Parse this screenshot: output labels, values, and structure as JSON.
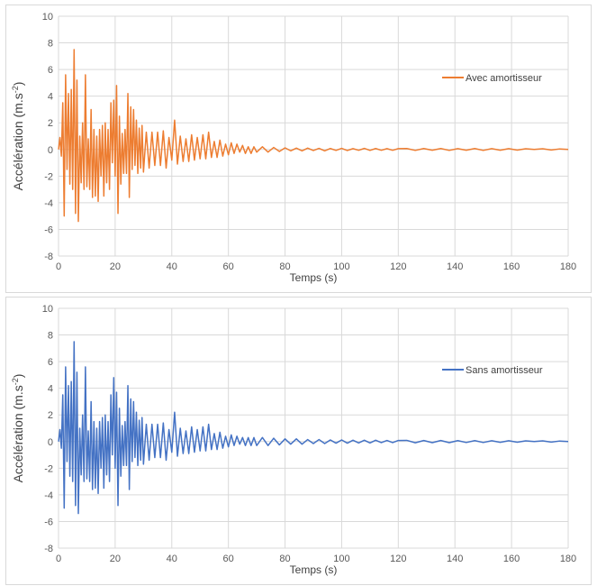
{
  "chart_data": [
    {
      "type": "line",
      "xlabel": "Temps (s)",
      "ylabel": "Accélération (m.s",
      "ylabel_sup": "-2",
      "ylabel_close": ")",
      "xlim": [
        0,
        180
      ],
      "ylim": [
        -8,
        10
      ],
      "xticks": [
        0,
        20,
        40,
        60,
        80,
        100,
        120,
        140,
        160,
        180
      ],
      "yticks": [
        -8,
        -6,
        -4,
        -2,
        0,
        2,
        4,
        6,
        8,
        10
      ],
      "grid": true,
      "legend_position": "right",
      "series": [
        {
          "name": "Avec amortisseur",
          "color": "#ed7d31",
          "x": [
            0,
            0.5,
            1,
            1.5,
            2,
            2.5,
            3,
            3.5,
            4,
            4.5,
            5,
            5.5,
            6,
            6.5,
            7,
            7.5,
            8,
            8.5,
            9,
            9.5,
            10,
            10.5,
            11,
            11.5,
            12,
            12.5,
            13,
            13.5,
            14,
            14.5,
            15,
            15.5,
            16,
            16.5,
            17,
            17.5,
            18,
            18.5,
            19,
            19.5,
            20,
            20.5,
            21,
            21.5,
            22,
            22.5,
            23,
            23.5,
            24,
            24.5,
            25,
            25.5,
            26,
            26.5,
            27,
            27.5,
            28,
            28.5,
            29,
            29.5,
            30,
            31,
            32,
            33,
            34,
            35,
            36,
            37,
            38,
            39,
            40,
            41,
            42,
            43,
            44,
            45,
            46,
            47,
            48,
            49,
            50,
            51,
            52,
            53,
            54,
            55,
            56,
            57,
            58,
            59,
            60,
            61,
            62,
            63,
            64,
            65,
            66,
            67,
            68,
            69,
            70,
            72,
            74,
            76,
            78,
            80,
            82,
            84,
            86,
            88,
            90,
            92,
            94,
            96,
            98,
            100,
            102,
            104,
            106,
            108,
            110,
            112,
            114,
            116,
            118,
            120,
            123,
            126,
            129,
            132,
            135,
            138,
            141,
            144,
            147,
            150,
            153,
            156,
            159,
            162,
            165,
            168,
            171,
            174,
            177,
            180
          ],
          "y": [
            0,
            0.9,
            -0.5,
            3.5,
            -5,
            5.6,
            -1.5,
            4.2,
            -2.6,
            4.5,
            -3,
            7.5,
            -4.8,
            5.2,
            -5.4,
            1,
            -2.5,
            2,
            -3,
            5.6,
            -2.8,
            0.8,
            -3,
            3,
            -3.6,
            1.5,
            -3.5,
            1,
            -3.9,
            1.5,
            -2,
            1.8,
            -3.5,
            2,
            -2.5,
            1.5,
            -3,
            3.5,
            -1,
            3.7,
            -2,
            4.8,
            -4.8,
            2.5,
            -2.6,
            1.2,
            -1.8,
            1.5,
            -1.8,
            4.2,
            -3.6,
            3.2,
            -1.5,
            3,
            -1.2,
            2.2,
            -1.8,
            1.6,
            -1.4,
            1.8,
            -1.7,
            1.3,
            -1.4,
            1.3,
            -1.2,
            1.3,
            -1.2,
            1.4,
            -1.4,
            0.9,
            -0.8,
            2.2,
            -1.1,
            1,
            -0.9,
            0.8,
            -0.9,
            1.1,
            -0.8,
            0.9,
            -0.7,
            1.1,
            -0.7,
            1.3,
            -0.6,
            0.6,
            -0.6,
            0.7,
            -0.5,
            0.4,
            -0.4,
            0.5,
            -0.3,
            0.4,
            -0.2,
            0.3,
            -0.3,
            0.2,
            -0.3,
            0.2,
            -0.2,
            0.2,
            -0.2,
            0.15,
            -0.15,
            0.12,
            -0.1,
            0.1,
            -0.1,
            0.1,
            -0.08,
            0.08,
            -0.1,
            0.07,
            -0.07,
            0.08,
            -0.08,
            0.06,
            -0.06,
            0.08,
            -0.07,
            0.07,
            -0.06,
            0.06,
            -0.06,
            0.06,
            0.07,
            -0.07,
            0.07,
            -0.06,
            0.07,
            -0.07,
            0.06,
            -0.06,
            0.07,
            -0.07,
            0.06,
            -0.06,
            0.06,
            -0.05,
            0.05,
            0,
            0.05,
            -0.04,
            0.04,
            0
          ]
        }
      ]
    },
    {
      "type": "line",
      "xlabel": "Temps (s)",
      "ylabel": "Accélération (m.s",
      "ylabel_sup": "-2",
      "ylabel_close": ")",
      "xlim": [
        0,
        180
      ],
      "ylim": [
        -8,
        10
      ],
      "xticks": [
        0,
        20,
        40,
        60,
        80,
        100,
        120,
        140,
        160,
        180
      ],
      "yticks": [
        -8,
        -6,
        -4,
        -2,
        0,
        2,
        4,
        6,
        8,
        10
      ],
      "grid": true,
      "legend_position": "right",
      "series": [
        {
          "name": "Sans amortisseur",
          "color": "#4472c4",
          "x": [
            0,
            0.5,
            1,
            1.5,
            2,
            2.5,
            3,
            3.5,
            4,
            4.5,
            5,
            5.5,
            6,
            6.5,
            7,
            7.5,
            8,
            8.5,
            9,
            9.5,
            10,
            10.5,
            11,
            11.5,
            12,
            12.5,
            13,
            13.5,
            14,
            14.5,
            15,
            15.5,
            16,
            16.5,
            17,
            17.5,
            18,
            18.5,
            19,
            19.5,
            20,
            20.5,
            21,
            21.5,
            22,
            22.5,
            23,
            23.5,
            24,
            24.5,
            25,
            25.5,
            26,
            26.5,
            27,
            27.5,
            28,
            28.5,
            29,
            29.5,
            30,
            31,
            32,
            33,
            34,
            35,
            36,
            37,
            38,
            39,
            40,
            41,
            42,
            43,
            44,
            45,
            46,
            47,
            48,
            49,
            50,
            51,
            52,
            53,
            54,
            55,
            56,
            57,
            58,
            59,
            60,
            61,
            62,
            63,
            64,
            65,
            66,
            67,
            68,
            69,
            70,
            72,
            74,
            76,
            78,
            80,
            82,
            84,
            86,
            88,
            90,
            92,
            94,
            96,
            98,
            100,
            102,
            104,
            106,
            108,
            110,
            112,
            114,
            116,
            118,
            120,
            123,
            126,
            129,
            132,
            135,
            138,
            141,
            144,
            147,
            150,
            153,
            156,
            159,
            162,
            165,
            168,
            171,
            174,
            177,
            180
          ],
          "y": [
            0,
            0.9,
            -0.5,
            3.5,
            -5,
            5.6,
            -1.5,
            4.2,
            -2.6,
            4.5,
            -3,
            7.5,
            -4.8,
            5.2,
            -5.4,
            1,
            -2.5,
            2,
            -3,
            5.6,
            -2.8,
            0.8,
            -3,
            3,
            -3.6,
            1.5,
            -3.5,
            1,
            -3.9,
            1.5,
            -2,
            1.8,
            -3.5,
            2,
            -2.5,
            1.5,
            -3,
            3.5,
            -1,
            4.8,
            -2,
            3.7,
            -4.8,
            2.5,
            -2.6,
            1.2,
            -1.8,
            1.5,
            -1.8,
            4.2,
            -3.6,
            3.2,
            -1.5,
            3,
            -1.2,
            2.2,
            -1.8,
            1.6,
            -1.4,
            1.8,
            -1.7,
            1.3,
            -1.4,
            1.3,
            -1.2,
            1.3,
            -1.2,
            1.4,
            -1.4,
            0.9,
            -0.8,
            2.2,
            -1.1,
            1,
            -0.9,
            0.8,
            -0.9,
            1.1,
            -0.8,
            0.9,
            -0.7,
            1.1,
            -0.7,
            1.3,
            -0.6,
            0.6,
            -0.6,
            0.7,
            -0.5,
            0.4,
            -0.4,
            0.5,
            -0.3,
            0.4,
            -0.2,
            0.3,
            -0.3,
            0.3,
            -0.3,
            0.3,
            -0.3,
            0.3,
            -0.3,
            0.25,
            -0.25,
            0.2,
            -0.2,
            0.2,
            -0.2,
            0.15,
            -0.15,
            0.15,
            -0.15,
            0.12,
            -0.12,
            0.12,
            -0.12,
            0.1,
            -0.1,
            0.1,
            -0.1,
            0.1,
            -0.08,
            0.08,
            -0.08,
            0.08,
            0.09,
            -0.09,
            0.08,
            -0.08,
            0.08,
            -0.08,
            0.07,
            -0.07,
            0.07,
            -0.07,
            0.06,
            -0.06,
            0.06,
            -0.05,
            0.05,
            0,
            0.05,
            -0.04,
            0.04,
            0
          ]
        }
      ]
    }
  ]
}
